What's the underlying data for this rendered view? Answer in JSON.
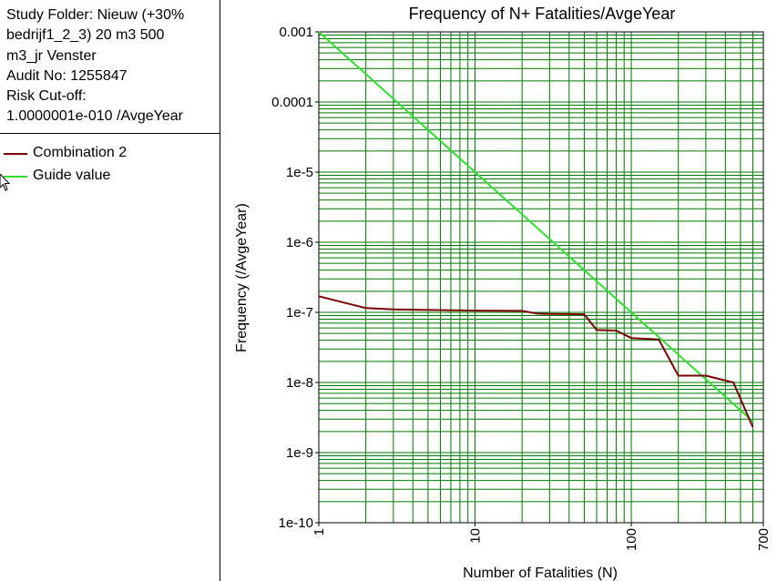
{
  "info": {
    "lines": [
      "Study Folder: Nieuw (+30%",
      "bedrijf1_2_3)  20 m3 500",
      "m3_jr Venster",
      "Audit No: 1255847",
      "Risk Cut-off:",
      "1.0000001e-010 /AvgeYear"
    ]
  },
  "legend": {
    "items": [
      {
        "label": "Combination 2",
        "color": "#7a0000"
      },
      {
        "label": "Guide value",
        "color": "#33dd33"
      }
    ]
  },
  "icons": {
    "cursor": "mouse-pointer-icon"
  },
  "chart_data": {
    "type": "line",
    "title": "Frequency of N+ Fatalities/AvgeYear",
    "xlabel": "Number of Fatalities (N)",
    "ylabel": "Frequency (/AvgeYear)",
    "x_scale": "log",
    "y_scale": "log",
    "xlim": [
      1,
      700
    ],
    "ylim": [
      1e-10,
      0.001
    ],
    "x_ticks": [
      {
        "value": 1,
        "label": "1"
      },
      {
        "value": 10,
        "label": "10"
      },
      {
        "value": 100,
        "label": "100"
      },
      {
        "value": 700,
        "label": "700"
      }
    ],
    "y_ticks": [
      {
        "value": 0.001,
        "label": "0.001"
      },
      {
        "value": 0.0001,
        "label": "0.0001"
      },
      {
        "value": 1e-05,
        "label": "1e-5"
      },
      {
        "value": 1e-06,
        "label": "1e-6"
      },
      {
        "value": 1e-07,
        "label": "1e-7"
      },
      {
        "value": 1e-08,
        "label": "1e-8"
      },
      {
        "value": 1e-09,
        "label": "1e-9"
      },
      {
        "value": 1e-10,
        "label": "1e-10"
      }
    ],
    "grid": true,
    "grid_color": "#007700",
    "series": [
      {
        "name": "Combination 2",
        "color": "#7a0000",
        "x": [
          1,
          2,
          3,
          5,
          10,
          20,
          25,
          30,
          50,
          60,
          80,
          100,
          150,
          200,
          300,
          450,
          600
        ],
        "y": [
          1.7e-07,
          1.15e-07,
          1.1e-07,
          1.08e-07,
          1.06e-07,
          1.05e-07,
          9.6e-08,
          9.5e-08,
          9.4e-08,
          5.6e-08,
          5.5e-08,
          4.3e-08,
          4.1e-08,
          1.25e-08,
          1.25e-08,
          1e-08,
          2.3e-09
        ]
      },
      {
        "name": "Guide value",
        "color": "#33dd33",
        "x": [
          1,
          600
        ],
        "y": [
          0.001,
          2.78e-09
        ]
      }
    ]
  }
}
